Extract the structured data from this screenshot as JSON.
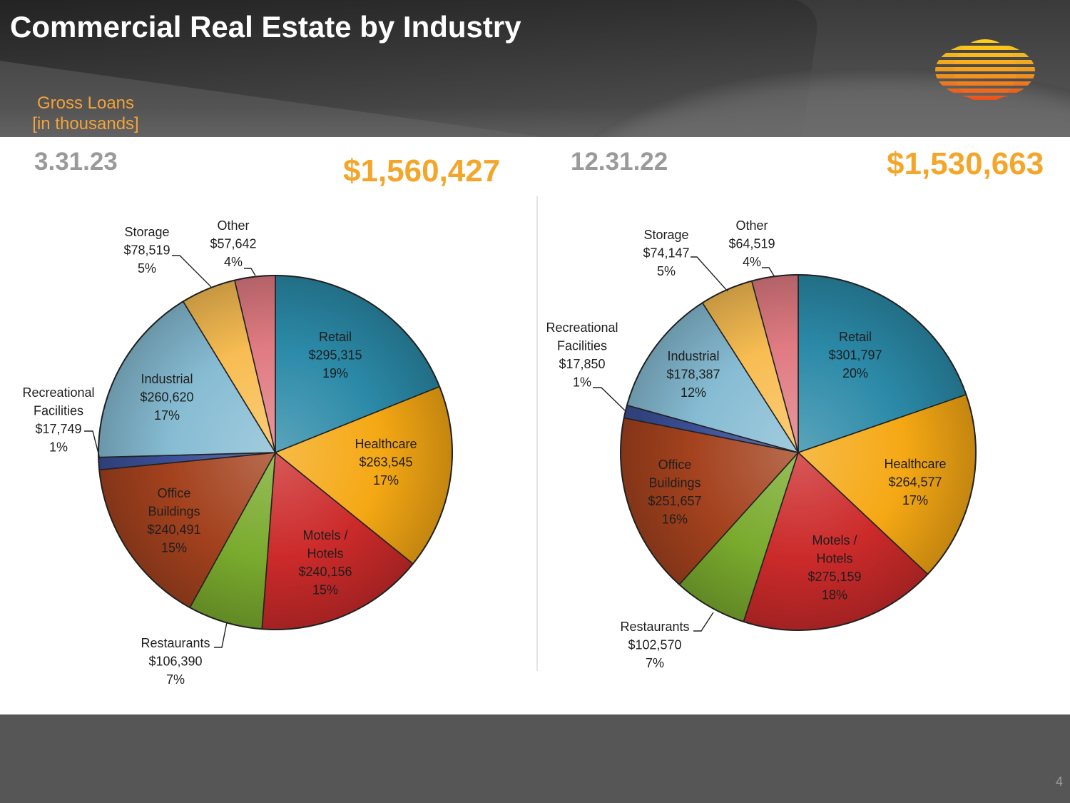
{
  "title": "Commercial Real Estate by Industry",
  "subtitle": [
    "Gross Loans",
    "[in thousands]"
  ],
  "page_number": "4",
  "colors": {
    "accent": "#f4a62a",
    "Retail": "#2b8aa8",
    "Healthcare": "#f5a814",
    "Motels": "#cc2a2a",
    "Restaurants": "#7aab2e",
    "Office": "#a4421e",
    "Recreational": "#3a4f96",
    "Industrial": "#86bcd3",
    "Storage": "#f8bd52",
    "Other": "#e07b82"
  },
  "panels": [
    {
      "date": "3.31.23",
      "total": "$1,560,427"
    },
    {
      "date": "12.31.22",
      "total": "$1,530,663"
    }
  ],
  "chart_data": [
    {
      "type": "pie",
      "title": "3.31.23",
      "slices": [
        {
          "key": "Retail",
          "label": [
            "Retail"
          ],
          "value": 295315,
          "value_label": "$295,315",
          "pct": "19%"
        },
        {
          "key": "Healthcare",
          "label": [
            "Healthcare"
          ],
          "value": 263545,
          "value_label": "$263,545",
          "pct": "17%"
        },
        {
          "key": "Motels",
          "label": [
            "Motels /",
            "Hotels"
          ],
          "value": 240156,
          "value_label": "$240,156",
          "pct": "15%"
        },
        {
          "key": "Restaurants",
          "label": [
            "Restaurants"
          ],
          "value": 106390,
          "value_label": "$106,390",
          "pct": "7%"
        },
        {
          "key": "Office",
          "label": [
            "Office",
            "Buildings"
          ],
          "value": 240491,
          "value_label": "$240,491",
          "pct": "15%"
        },
        {
          "key": "Recreational",
          "label": [
            "Recreational",
            "Facilities"
          ],
          "value": 17749,
          "value_label": "$17,749",
          "pct": "1%"
        },
        {
          "key": "Industrial",
          "label": [
            "Industrial"
          ],
          "value": 260620,
          "value_label": "$260,620",
          "pct": "17%"
        },
        {
          "key": "Storage",
          "label": [
            "Storage"
          ],
          "value": 78519,
          "value_label": "$78,519",
          "pct": "5%"
        },
        {
          "key": "Other",
          "label": [
            "Other"
          ],
          "value": 57642,
          "value_label": "$57,642",
          "pct": "4%"
        }
      ]
    },
    {
      "type": "pie",
      "title": "12.31.22",
      "slices": [
        {
          "key": "Retail",
          "label": [
            "Retail"
          ],
          "value": 301797,
          "value_label": "$301,797",
          "pct": "20%"
        },
        {
          "key": "Healthcare",
          "label": [
            "Healthcare"
          ],
          "value": 264577,
          "value_label": "$264,577",
          "pct": "17%"
        },
        {
          "key": "Motels",
          "label": [
            "Motels /",
            "Hotels"
          ],
          "value": 275159,
          "value_label": "$275,159",
          "pct": "18%"
        },
        {
          "key": "Restaurants",
          "label": [
            "Restaurants"
          ],
          "value": 102570,
          "value_label": "$102,570",
          "pct": "7%"
        },
        {
          "key": "Office",
          "label": [
            "Office",
            "Buildings"
          ],
          "value": 251657,
          "value_label": "$251,657",
          "pct": "16%"
        },
        {
          "key": "Recreational",
          "label": [
            "Recreational",
            "Facilities"
          ],
          "value": 17850,
          "value_label": "$17,850",
          "pct": "1%"
        },
        {
          "key": "Industrial",
          "label": [
            "Industrial"
          ],
          "value": 178387,
          "value_label": "$178,387",
          "pct": "12%"
        },
        {
          "key": "Storage",
          "label": [
            "Storage"
          ],
          "value": 74147,
          "value_label": "$74,147",
          "pct": "5%"
        },
        {
          "key": "Other",
          "label": [
            "Other"
          ],
          "value": 64519,
          "value_label": "$64,519",
          "pct": "4%"
        }
      ]
    }
  ]
}
